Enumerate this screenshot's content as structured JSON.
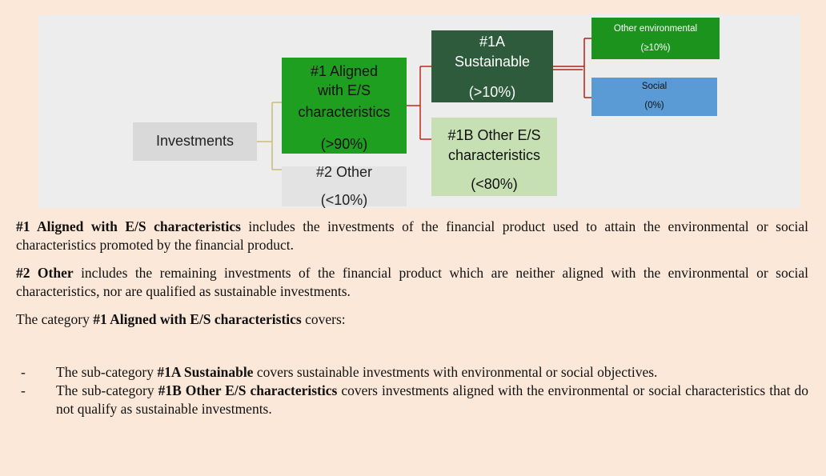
{
  "diagram": {
    "nodes": [
      {
        "lines": [
          "Investments"
        ]
      },
      {
        "lines": [
          "#1 Aligned",
          "with E/S",
          "characteristics",
          "(>90%)"
        ]
      },
      {
        "lines": [
          "#2 Other",
          "(<10%)"
        ]
      },
      {
        "lines": [
          "#1A",
          "Sustainable",
          "(>10%)"
        ]
      },
      {
        "lines": [
          "#1B Other E/S",
          "characteristics",
          "(<80%)"
        ]
      },
      {
        "lines": [
          "Other environmental",
          "(≥10%)"
        ]
      },
      {
        "lines": [
          "Social",
          "(0%)"
        ]
      }
    ]
  },
  "paragraphs": [
    {
      "runs": [
        {
          "text": "#1 Aligned with E/S characteristics",
          "bold": true
        },
        {
          "text": " includes the investments of the financial product used to attain the environmental or social characteristics promoted by the financial product.",
          "bold": false
        }
      ]
    },
    {
      "runs": [
        {
          "text": "#2 Other",
          "bold": true
        },
        {
          "text": " includes the remaining investments of the financial product which are neither aligned with the environmental or social characteristics, nor are qualified as sustainable investments.",
          "bold": false
        }
      ]
    },
    {
      "runs": [
        {
          "text": "The category ",
          "bold": false
        },
        {
          "text": "#1 Aligned with E/S characteristics",
          "bold": true
        },
        {
          "text": " covers:",
          "bold": false
        }
      ]
    }
  ],
  "bullets": [
    {
      "marker": "-",
      "runs": [
        {
          "text": "The sub-category ",
          "bold": false
        },
        {
          "text": "#1A Sustainable",
          "bold": true
        },
        {
          "text": " covers sustainable investments with environmental or social objectives.",
          "bold": false
        }
      ]
    },
    {
      "marker": "-",
      "runs": [
        {
          "text": "The sub-category ",
          "bold": false
        },
        {
          "text": "#1B Other E/S characteristics",
          "bold": true
        },
        {
          "text": " covers investments aligned with the environmental or social characteristics that do not qualify as sustainable investments.",
          "bold": false
        }
      ]
    }
  ]
}
